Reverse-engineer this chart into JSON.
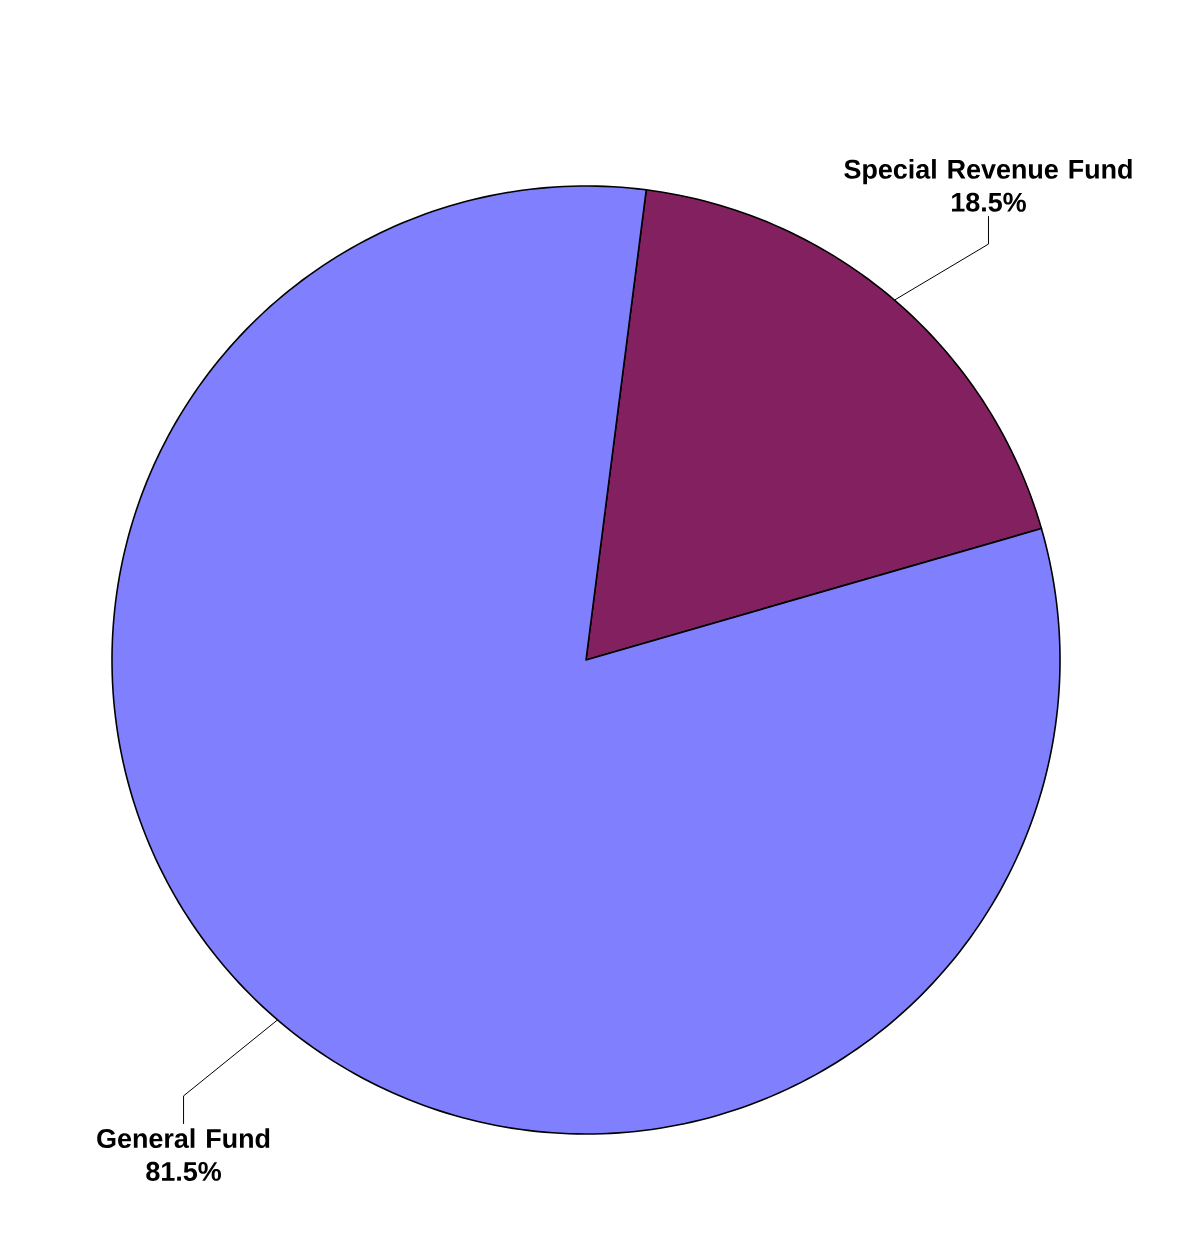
{
  "chart_data": {
    "type": "pie",
    "categories": [
      "Special Revenue Fund",
      "General Fund"
    ],
    "values": [
      18.5,
      81.5
    ],
    "value_labels": [
      "18.5%",
      "81.5%"
    ],
    "colors": [
      "#832060",
      "#8080ff"
    ]
  }
}
